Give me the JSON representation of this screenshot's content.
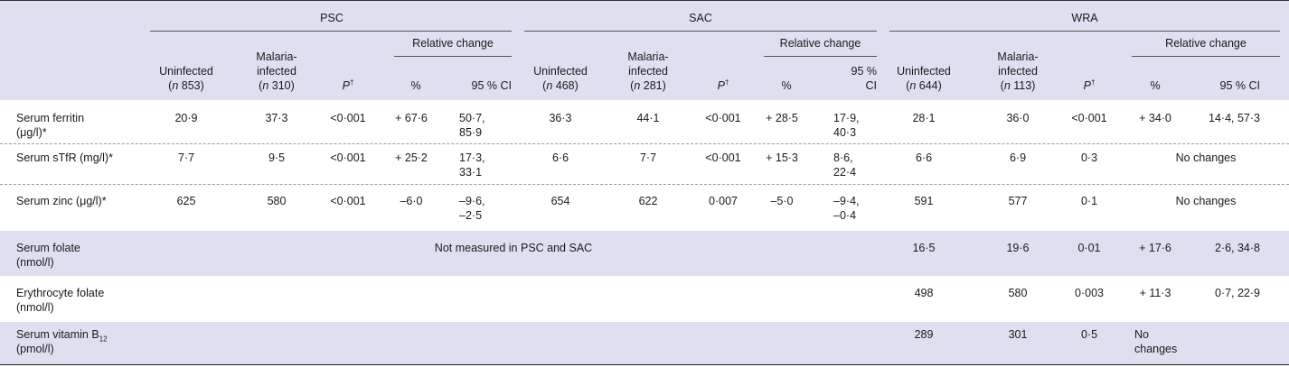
{
  "groups": [
    "PSC",
    "SAC",
    "WRA"
  ],
  "relative_change": "Relative change",
  "subheads": {
    "uninfected": "Uninfected",
    "malaria_1": "Malaria-",
    "malaria_2": "infected",
    "p": "P",
    "dagger": "†",
    "pct": "%",
    "ci": "95 % CI",
    "ci_1": "95 %",
    "ci_2": "CI"
  },
  "n": {
    "psc_un": "853",
    "psc_mal": "310",
    "sac_un": "468",
    "sac_mal": "281",
    "wra_un": "644",
    "wra_mal": "113"
  },
  "rows": [
    {
      "label1": "Serum ferritin",
      "label2": "(μg/l)*",
      "psc": [
        "20·9",
        "37·3",
        "<0·001",
        "+ 67·6",
        "50·7,",
        "85·9"
      ],
      "sac": [
        "36·3",
        "44·1",
        "<0·001",
        "+ 28·5",
        "17·9,",
        "40·3"
      ],
      "wra": [
        "28·1",
        "36·0",
        "<0·001",
        "+ 34·0",
        "14·4, 57·3"
      ]
    },
    {
      "label1": "Serum sTfR (mg/l)*",
      "psc": [
        "7·7",
        "9·5",
        "<0·001",
        "+ 25·2",
        "17·3,",
        "33·1"
      ],
      "sac": [
        "6·6",
        "7·7",
        "<0·001",
        "+ 15·3",
        "8·6,",
        "22·4"
      ],
      "wra": [
        "6·6",
        "6·9",
        "0·3",
        "No changes"
      ]
    },
    {
      "label1": "Serum zinc (μg/l)*",
      "psc": [
        "625",
        "580",
        "<0·001",
        "–6·0",
        "–9·6,",
        "–2·5"
      ],
      "sac": [
        "654",
        "622",
        "0·007",
        "–5·0",
        "–9·4,",
        "–0·4"
      ],
      "wra": [
        "591",
        "577",
        "0·1",
        "No changes"
      ]
    },
    {
      "label1": "Serum folate",
      "label2": "(nmol/l)",
      "note": "Not measured in PSC and SAC",
      "wra": [
        "16·5",
        "19·6",
        "0·01",
        "+ 17·6",
        "2·6, 34·8"
      ]
    },
    {
      "label1": "Erythrocyte folate",
      "label2": "(nmol/l)",
      "wra": [
        "498",
        "580",
        "0·003",
        "+ 11·3",
        "0·7, 22·9"
      ]
    },
    {
      "label1": "Serum vitamin B",
      "label1_sub": "12",
      "label2": "(pmol/l)",
      "wra": [
        "289",
        "301",
        "0·5",
        "No",
        "changes"
      ]
    }
  ]
}
